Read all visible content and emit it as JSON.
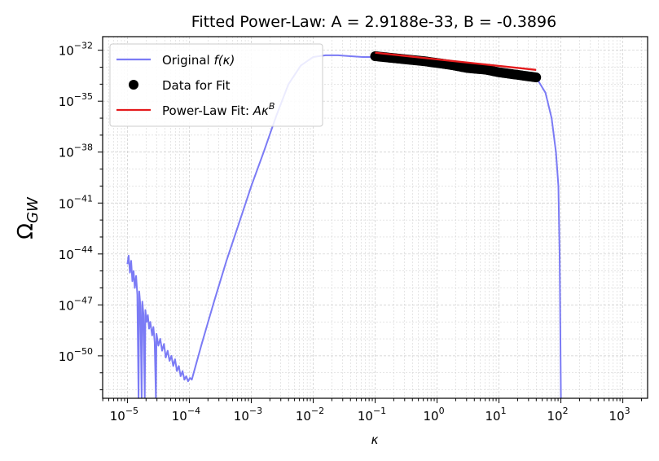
{
  "chart_data": {
    "type": "line",
    "title": "Fitted Power-Law: A = 2.9188e-33, B = -0.3896",
    "xlabel": "κ",
    "ylabel": "Ω",
    "ylabel_sub": "GW",
    "x_scale": "log",
    "y_scale": "log",
    "xlim_exp": [
      -5.4,
      3.4
    ],
    "ylim_exp": [
      -52.5,
      -31.2
    ],
    "grid": true,
    "legend_position": "upper-left",
    "x_ticks": [
      {
        "exp": -5,
        "label": "−5"
      },
      {
        "exp": -4,
        "label": "−4"
      },
      {
        "exp": -3,
        "label": "−3"
      },
      {
        "exp": -2,
        "label": "−2"
      },
      {
        "exp": -1,
        "label": "−1"
      },
      {
        "exp": 0,
        "label": "0"
      },
      {
        "exp": 1,
        "label": "1"
      },
      {
        "exp": 2,
        "label": "2"
      },
      {
        "exp": 3,
        "label": "3"
      }
    ],
    "y_ticks": [
      {
        "exp": -32,
        "label": "−32"
      },
      {
        "exp": -35,
        "label": "−35"
      },
      {
        "exp": -38,
        "label": "−38"
      },
      {
        "exp": -41,
        "label": "−41"
      },
      {
        "exp": -44,
        "label": "−44"
      },
      {
        "exp": -47,
        "label": "−47"
      },
      {
        "exp": -50,
        "label": "−50"
      }
    ],
    "tick_base": "10",
    "colors": {
      "original": "#7b7bf5",
      "data": "#000000",
      "fit": "#e41a1c",
      "grid": "#cccccc",
      "legend_border": "#cccccc"
    },
    "series": [
      {
        "name": "Original f(κ)",
        "legend_main": "Original ",
        "legend_math": "f(κ)",
        "kind": "line",
        "points_log10": [
          [
            -5.0,
            -44.6
          ],
          [
            -4.98,
            -44.1
          ],
          [
            -4.96,
            -45.1
          ],
          [
            -4.94,
            -44.4
          ],
          [
            -4.92,
            -45.6
          ],
          [
            -4.9,
            -45.0
          ],
          [
            -4.88,
            -46.0
          ],
          [
            -4.86,
            -45.3
          ],
          [
            -4.84,
            -46.4
          ],
          [
            -4.82,
            -52.5
          ],
          [
            -4.81,
            -46.2
          ],
          [
            -4.79,
            -47.1
          ],
          [
            -4.77,
            -52.5
          ],
          [
            -4.76,
            -46.8
          ],
          [
            -4.74,
            -47.6
          ],
          [
            -4.72,
            -52.5
          ],
          [
            -4.71,
            -47.3
          ],
          [
            -4.69,
            -48.0
          ],
          [
            -4.67,
            -47.6
          ],
          [
            -4.65,
            -48.4
          ],
          [
            -4.63,
            -48.0
          ],
          [
            -4.6,
            -48.8
          ],
          [
            -4.58,
            -48.3
          ],
          [
            -4.56,
            -49.2
          ],
          [
            -4.54,
            -52.5
          ],
          [
            -4.53,
            -48.7
          ],
          [
            -4.5,
            -49.4
          ],
          [
            -4.47,
            -49.0
          ],
          [
            -4.44,
            -49.7
          ],
          [
            -4.41,
            -49.3
          ],
          [
            -4.38,
            -50.1
          ],
          [
            -4.35,
            -49.7
          ],
          [
            -4.32,
            -50.3
          ],
          [
            -4.29,
            -50.0
          ],
          [
            -4.26,
            -50.6
          ],
          [
            -4.23,
            -50.2
          ],
          [
            -4.2,
            -50.9
          ],
          [
            -4.17,
            -50.6
          ],
          [
            -4.14,
            -51.2
          ],
          [
            -4.11,
            -50.9
          ],
          [
            -4.08,
            -51.4
          ],
          [
            -4.05,
            -51.2
          ],
          [
            -4.02,
            -51.5
          ],
          [
            -3.99,
            -51.3
          ],
          [
            -3.96,
            -51.4
          ],
          [
            -3.93,
            -51.0
          ],
          [
            -3.8,
            -49.3
          ],
          [
            -3.6,
            -46.8
          ],
          [
            -3.4,
            -44.4
          ],
          [
            -3.2,
            -42.2
          ],
          [
            -3.0,
            -40.0
          ],
          [
            -2.8,
            -38.0
          ],
          [
            -2.6,
            -35.9
          ],
          [
            -2.4,
            -34.0
          ],
          [
            -2.2,
            -32.9
          ],
          [
            -2.0,
            -32.4
          ],
          [
            -1.8,
            -32.3
          ],
          [
            -1.6,
            -32.3
          ],
          [
            -1.4,
            -32.35
          ],
          [
            -1.2,
            -32.4
          ],
          [
            -1.0,
            -32.4
          ],
          [
            -0.6,
            -32.6
          ],
          [
            -0.2,
            -32.8
          ],
          [
            0.2,
            -33.0
          ],
          [
            0.6,
            -33.2
          ],
          [
            1.0,
            -33.4
          ],
          [
            1.4,
            -33.5
          ],
          [
            1.6,
            -33.6
          ],
          [
            1.75,
            -34.5
          ],
          [
            1.85,
            -36.0
          ],
          [
            1.92,
            -38.0
          ],
          [
            1.96,
            -40.0
          ],
          [
            1.98,
            -44.0
          ],
          [
            1.99,
            -48.0
          ],
          [
            2.0,
            -52.5
          ]
        ]
      },
      {
        "name": "Data for Fit",
        "legend_main": "Data for Fit",
        "kind": "scatter",
        "x_log10_range": [
          -1.0,
          1.6
        ],
        "count": 120,
        "wiggle": [
          [
            -1.0,
            -32.35
          ],
          [
            -0.6,
            -32.5
          ],
          [
            -0.2,
            -32.65
          ],
          [
            0.2,
            -32.85
          ],
          [
            0.5,
            -33.05
          ],
          [
            0.8,
            -33.15
          ],
          [
            1.0,
            -33.3
          ],
          [
            1.3,
            -33.45
          ],
          [
            1.6,
            -33.6
          ]
        ]
      },
      {
        "name": "Power-Law Fit: Aκ^B",
        "legend_main": "Power-Law Fit: ",
        "legend_math": "Aκ",
        "legend_sup": "B",
        "kind": "fit",
        "A": 2.9188e-33,
        "B": -0.3896,
        "x_log10_range": [
          -1.0,
          1.6
        ]
      }
    ]
  }
}
